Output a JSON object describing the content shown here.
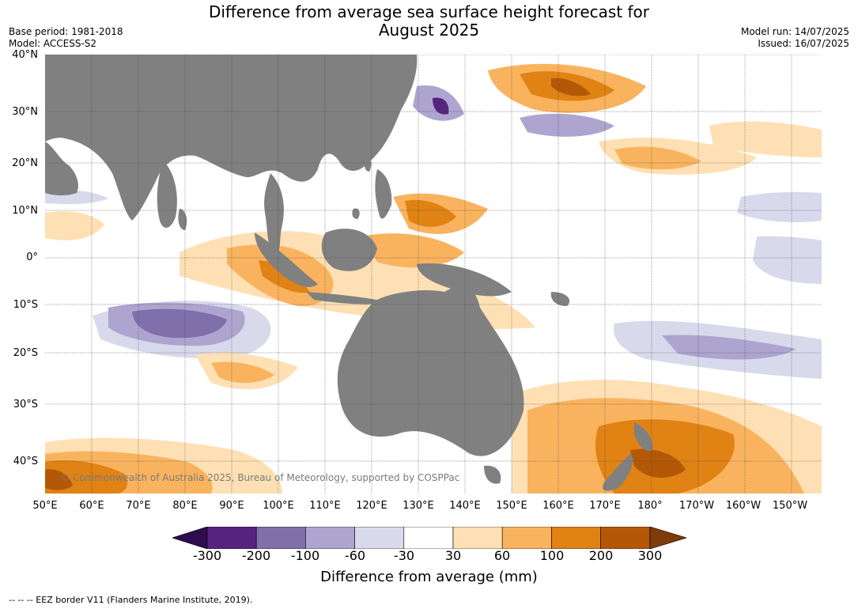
{
  "title": {
    "line1": "Difference from average sea surface height forecast for",
    "line2": "August 2025"
  },
  "meta": {
    "base_period": "Base period: 1981-2018",
    "model": "Model: ACCESS-S2",
    "model_run": "Model run: 14/07/2025",
    "issued": "Issued: 16/07/2025"
  },
  "map": {
    "lat_labels": [
      "40°N",
      "30°N",
      "20°N",
      "10°N",
      "0°",
      "10°S",
      "20°S",
      "30°S",
      "40°S"
    ],
    "lon_labels": [
      "50°E",
      "60°E",
      "70°E",
      "80°E",
      "90°E",
      "100°E",
      "110°E",
      "120°E",
      "130°E",
      "140°E",
      "150°E",
      "160°E",
      "170°E",
      "180°",
      "170°W",
      "160°W",
      "150°W"
    ],
    "copyright": "© Commonwealth of Australia 2025, Bureau of Meteorology, supported by COSPPac",
    "land_color": "#808080",
    "ocean_color": "#ffffff"
  },
  "colorbar": {
    "ticks": [
      "-300",
      "-200",
      "-100",
      "-60",
      "-30",
      "30",
      "60",
      "100",
      "200",
      "300"
    ],
    "colors": [
      "#2e0c4e",
      "#56237f",
      "#7f6fab",
      "#ada5cf",
      "#d9d9ec",
      "#ffffff",
      "#fee0b4",
      "#f9b35e",
      "#e08214",
      "#b35806",
      "#7f3b08"
    ],
    "label": "Difference from average (mm)"
  },
  "footnote": "--  --  -- EEZ border V11 (Flanders Marine Institute, 2019)."
}
